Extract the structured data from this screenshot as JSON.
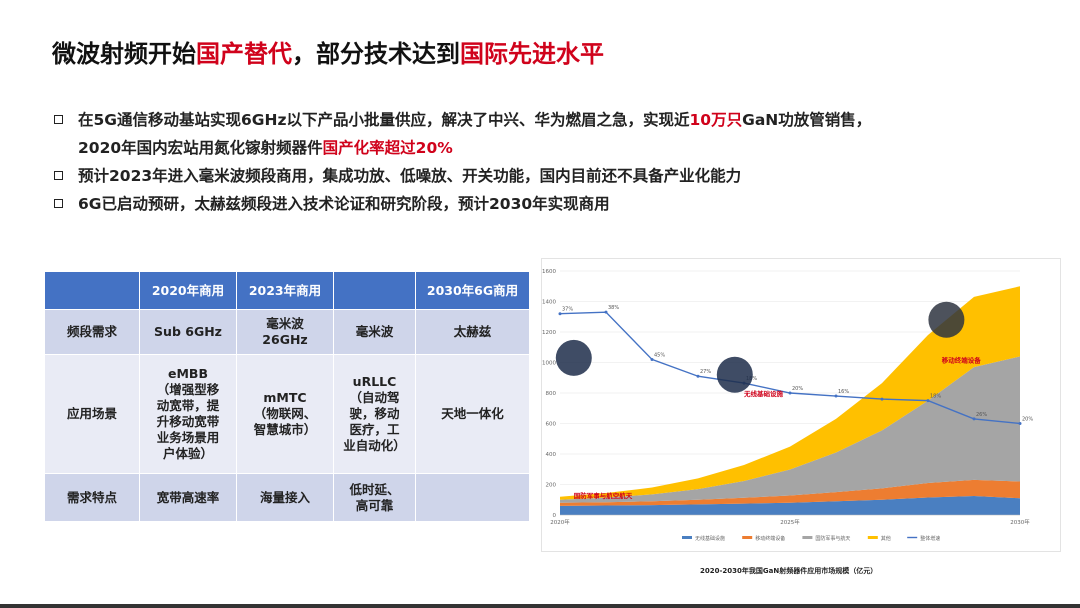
{
  "title": {
    "part1": "微波射频开始",
    "part2": "国产替代",
    "part3": "，部分技术达到",
    "part4": "国际先进水平"
  },
  "bullets": [
    {
      "a": "在5G通信移动基站实现6GHz以下产品小批量供应，解决了中兴、华为燃眉之急，实现近",
      "b": "10万只",
      "c": "GaN功放管销售，"
    },
    {
      "a": "2020年国内宏站用氮化镓射频器件",
      "b": "国产化率超过20%"
    },
    {
      "a": "预计2023年进入毫米波频段商用，集成功放、低噪放、开关功能，国内目前还不具备产业化能力"
    },
    {
      "a": "6G已启动预研，太赫兹频段进入技术论证和研究阶段，预计2030年实现商用"
    }
  ],
  "table": {
    "headers": [
      "",
      "2020年商用",
      "2023年商用",
      "",
      "2030年6G商用"
    ],
    "rows": [
      [
        "频段需求",
        "Sub 6GHz",
        "毫米波\n26GHz",
        "毫米波",
        "太赫兹"
      ],
      [
        "应用场景",
        "eMBB\n（增强型移\n动宽带，提\n升移动宽带\n业务场景用\n户体验）",
        "mMTC\n（物联网、\n智慧城市）",
        "uRLLC\n（自动驾\n驶，移动\n医疗，工\n业自动化）",
        "天地一体化"
      ],
      [
        "需求特点",
        "宽带高速率",
        "海量接入",
        "低时延、\n高可靠",
        ""
      ]
    ]
  },
  "chart_data": {
    "type": "area",
    "x": [
      2020,
      2021,
      2022,
      2023,
      2024,
      2025,
      2026,
      2027,
      2028,
      2029,
      2030
    ],
    "xticks": [
      "2020年",
      "2025年",
      "2030年"
    ],
    "ylim": [
      0,
      1600
    ],
    "yticks": [
      "0",
      "200",
      "400",
      "600",
      "800",
      "1000",
      "1200",
      "1400",
      "1600"
    ],
    "series": [
      {
        "name": "无线基础设施",
        "color": "#4a7fc1",
        "values": [
          60,
          62,
          65,
          70,
          75,
          80,
          90,
          100,
          115,
          125,
          110
        ]
      },
      {
        "name": "移动终端设备",
        "color": "#ed7d31",
        "values": [
          20,
          22,
          25,
          30,
          38,
          48,
          60,
          75,
          95,
          105,
          110
        ]
      },
      {
        "name": "国防军事与航天",
        "color": "#a5a5a5",
        "values": [
          20,
          30,
          45,
          70,
          110,
          170,
          260,
          380,
          540,
          740,
          820
        ]
      },
      {
        "name": "其他",
        "color": "#ffc000",
        "values": [
          20,
          30,
          45,
          70,
          105,
          150,
          220,
          310,
          430,
          460,
          460
        ]
      }
    ],
    "line": {
      "name": "整体增速",
      "color": "#4472c4",
      "values": [
        1320,
        1330,
        1020,
        910,
        865,
        800,
        780,
        760,
        750,
        630,
        600
      ],
      "labels": [
        "37%",
        "38%",
        "45%",
        "27%",
        "18%",
        "20%",
        "16%",
        "",
        "18%",
        "26%",
        "20%"
      ]
    },
    "annotations": [
      "移动终端设备",
      "无线基础设施",
      "国防军事与航空航天"
    ],
    "caption": "2020-2030年我国GaN射频器件应用市场规模（亿元）"
  }
}
